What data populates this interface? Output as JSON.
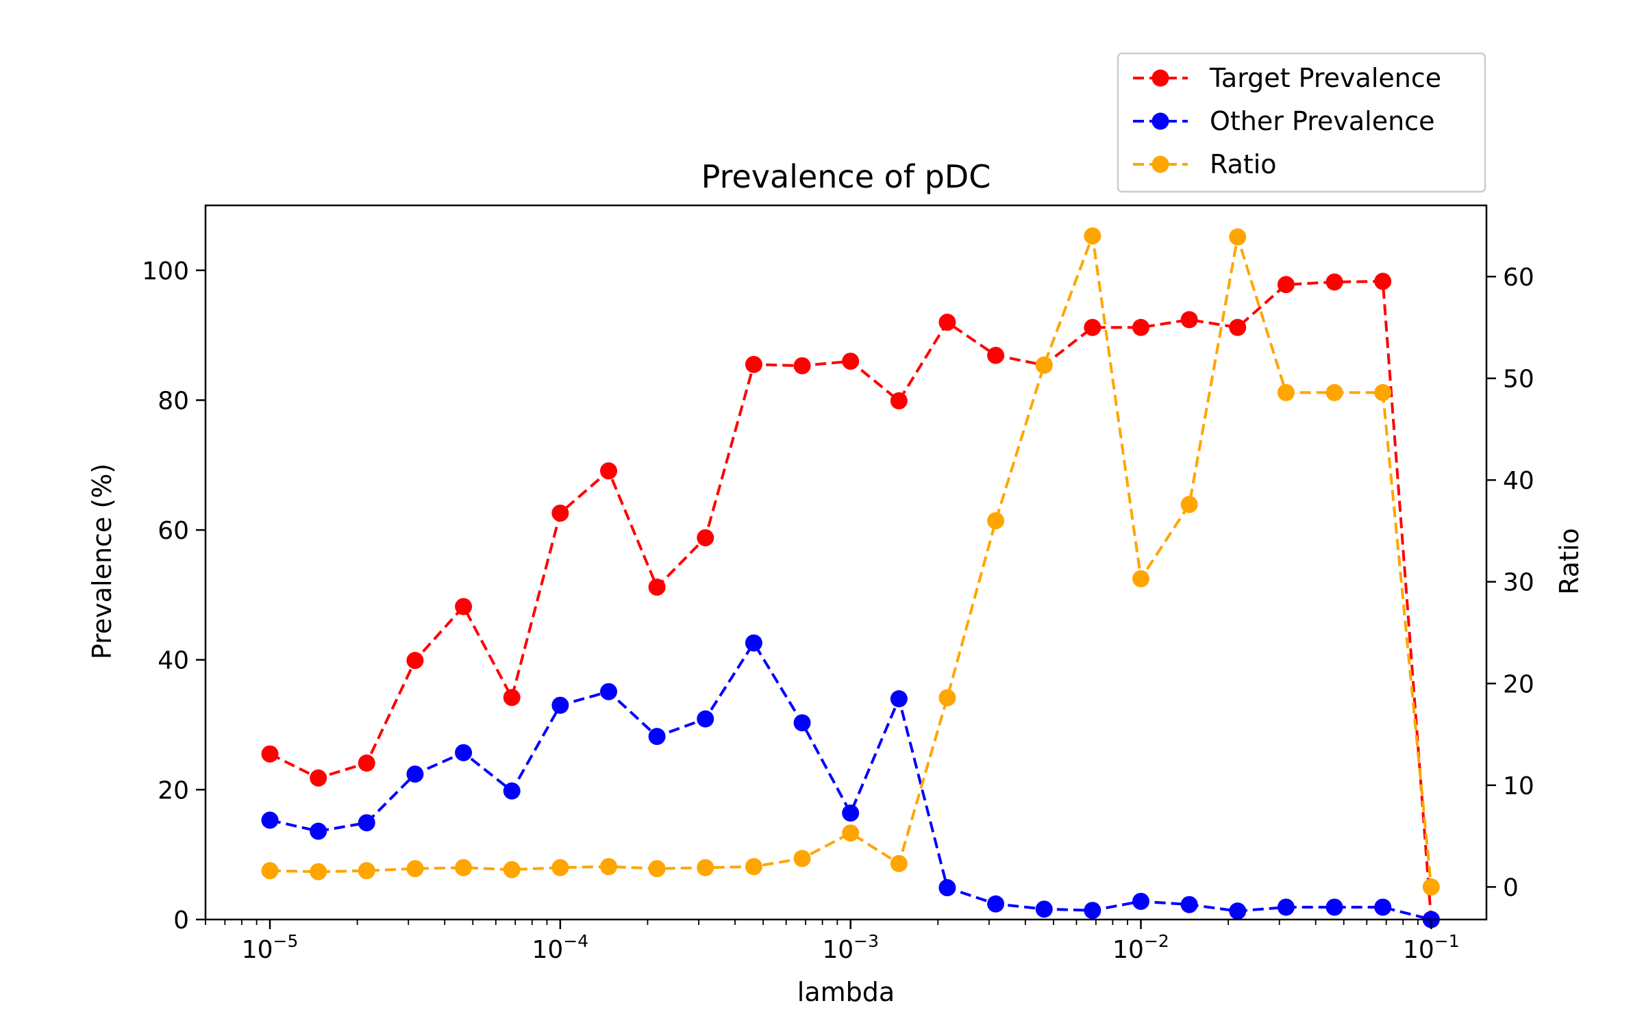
{
  "chart_data": {
    "type": "line",
    "title": "Prevalence of pDC",
    "xlabel": "lambda",
    "ylabel": "Prevalence (%)",
    "y2label": "Ratio",
    "xscale": "log",
    "xlim": [
      6e-06,
      0.155
    ],
    "ylim": [
      0,
      110
    ],
    "y2lim": [
      -3.2,
      67
    ],
    "x_ticks": [
      {
        "value": 1e-05,
        "base": "10",
        "exp": "−5"
      },
      {
        "value": 0.0001,
        "base": "10",
        "exp": "−4"
      },
      {
        "value": 0.001,
        "base": "10",
        "exp": "−3"
      },
      {
        "value": 0.01,
        "base": "10",
        "exp": "−2"
      },
      {
        "value": 0.1,
        "base": "10",
        "exp": "−1"
      }
    ],
    "y_ticks": [
      0,
      20,
      40,
      60,
      80,
      100
    ],
    "y2_ticks": [
      0,
      10,
      20,
      30,
      40,
      50,
      60
    ],
    "grid": false,
    "legend_position": "top-right, above plot",
    "x": [
      1e-05,
      1.468e-05,
      2.154e-05,
      3.162e-05,
      4.642e-05,
      6.813e-05,
      0.0001,
      0.0001468,
      0.0002154,
      0.0003162,
      0.0004642,
      0.0006813,
      0.001,
      0.001468,
      0.002154,
      0.003162,
      0.004642,
      0.006813,
      0.01,
      0.01468,
      0.02154,
      0.03162,
      0.04642,
      0.06813,
      0.1
    ],
    "series": [
      {
        "name": "Target Prevalence",
        "axis": "left",
        "color": "#ff0000",
        "values": [
          25.5,
          21.8,
          24.1,
          39.9,
          48.2,
          34.2,
          62.6,
          69.1,
          51.2,
          58.8,
          85.5,
          85.3,
          86.0,
          79.9,
          92.0,
          86.9,
          85.4,
          91.2,
          91.2,
          92.4,
          91.2,
          97.8,
          98.2,
          98.3,
          0.0
        ]
      },
      {
        "name": "Other Prevalence",
        "axis": "left",
        "color": "#0000ff",
        "values": [
          15.3,
          13.6,
          14.9,
          22.4,
          25.7,
          19.8,
          33.0,
          35.1,
          28.2,
          30.9,
          42.6,
          30.3,
          16.4,
          34.0,
          4.9,
          2.4,
          1.6,
          1.4,
          2.8,
          2.3,
          1.3,
          1.9,
          1.9,
          1.9,
          0.0
        ]
      },
      {
        "name": "Ratio",
        "axis": "right",
        "color": "#ffa500",
        "values": [
          1.6,
          1.5,
          1.6,
          1.8,
          1.9,
          1.7,
          1.9,
          2.0,
          1.8,
          1.9,
          2.0,
          2.8,
          5.3,
          2.3,
          18.6,
          36.0,
          51.3,
          64.0,
          30.3,
          37.6,
          63.9,
          48.6,
          48.6,
          48.6,
          0.0
        ]
      }
    ]
  }
}
